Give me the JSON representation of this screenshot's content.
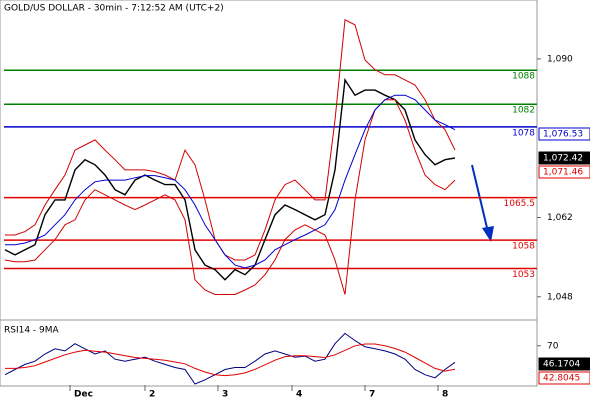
{
  "chart_data": {
    "type": "price",
    "title": "GOLD/US DOLLAR - 30min - 7:12:52 AM (UTC+2)",
    "x": [
      0,
      1,
      2,
      3,
      4,
      5,
      6,
      7,
      8,
      9,
      10,
      11,
      12,
      13,
      14,
      15,
      16,
      17,
      18,
      19,
      20,
      21,
      22,
      23,
      24,
      25,
      26,
      27,
      28,
      29,
      30,
      31,
      32,
      33,
      34,
      35,
      36,
      37,
      38,
      39,
      40,
      41,
      42,
      43,
      44,
      45
    ],
    "xlim": [
      -0.5,
      53.2
    ],
    "xticks": [
      {
        "value": 6.5,
        "label": "Dec"
      },
      {
        "value": 14,
        "label": "2"
      },
      {
        "value": 21.3,
        "label": "3"
      },
      {
        "value": 28.7,
        "label": "4"
      },
      {
        "value": 36,
        "label": "7"
      },
      {
        "value": 43.3,
        "label": "8"
      }
    ],
    "ylim": [
      1043.9,
      1100.4
    ],
    "yticks": [
      {
        "value": 1048,
        "label": "1,048"
      },
      {
        "value": 1062,
        "label": "1,062"
      },
      {
        "value": 1090,
        "label": "1,090"
      }
    ],
    "series": [
      {
        "name": "Price",
        "color": "#000000",
        "values": [
          1056.3,
          1055.4,
          1056.3,
          1057.2,
          1062.5,
          1065.1,
          1065.1,
          1070.4,
          1072.2,
          1071.3,
          1069.5,
          1066.9,
          1066,
          1068.6,
          1069.5,
          1068.6,
          1067.8,
          1067.8,
          1065.1,
          1056.3,
          1053.6,
          1052.8,
          1051,
          1052.8,
          1051.9,
          1053.6,
          1058.1,
          1062.5,
          1064.2,
          1063.4,
          1062.5,
          1061.6,
          1062.5,
          1070.4,
          1086.3,
          1083.6,
          1084.5,
          1084.5,
          1083.6,
          1082.8,
          1081,
          1075.7,
          1073.1,
          1071.3,
          1072.2,
          1072.5
        ]
      },
      {
        "name": "Upper band",
        "color": "#d00000",
        "values": [
          1058.9,
          1058.9,
          1059.5,
          1060.7,
          1064.2,
          1066.9,
          1069.5,
          1073.9,
          1074.8,
          1075.7,
          1073.9,
          1072.2,
          1070.4,
          1070.4,
          1070.4,
          1070.1,
          1069.5,
          1068.6,
          1073.9,
          1071.3,
          1065.1,
          1058.1,
          1055.4,
          1054.5,
          1054.5,
          1055.4,
          1059.8,
          1065.1,
          1067.8,
          1068.6,
          1066.9,
          1065.1,
          1065.1,
          1079.2,
          1096.9,
          1096,
          1089.8,
          1088.1,
          1087.2,
          1087.2,
          1086.3,
          1085.4,
          1082.8,
          1079.2,
          1077.5,
          1073.9
        ]
      },
      {
        "name": "Lower band",
        "color": "#d00000",
        "values": [
          1054.5,
          1054.2,
          1054.2,
          1054.5,
          1056.3,
          1058.1,
          1060.7,
          1061.6,
          1065.1,
          1066.9,
          1066,
          1065.1,
          1064.2,
          1063.4,
          1064.2,
          1065.1,
          1066,
          1065.1,
          1061.6,
          1051,
          1049.2,
          1048.4,
          1048.4,
          1048.4,
          1049.2,
          1050.1,
          1051.9,
          1054.5,
          1058.1,
          1059.8,
          1060.7,
          1059.8,
          1058.9,
          1054.5,
          1048.4,
          1065.1,
          1075.7,
          1081,
          1082.8,
          1082.8,
          1079.2,
          1073.9,
          1069.5,
          1067.8,
          1066.9,
          1068.6
        ]
      },
      {
        "name": "Moving average",
        "color": "#0000cc",
        "values": [
          1057.2,
          1057.2,
          1057.5,
          1058.1,
          1058.9,
          1060.7,
          1062.5,
          1065.1,
          1066.9,
          1068.3,
          1068.6,
          1068.6,
          1068.6,
          1069,
          1069.4,
          1069.4,
          1069,
          1068.6,
          1066.9,
          1064.2,
          1060.7,
          1058.1,
          1055.4,
          1053.6,
          1053.1,
          1053.6,
          1054.5,
          1056.3,
          1057.2,
          1058.1,
          1058.9,
          1059.8,
          1060.7,
          1063.4,
          1068.6,
          1073.1,
          1077.5,
          1081,
          1082.8,
          1083.6,
          1083.6,
          1082.8,
          1081,
          1079.2,
          1078.4,
          1077.5
        ]
      }
    ],
    "levels": [
      {
        "value": 1088,
        "color": "#008000"
      },
      {
        "value": 1082,
        "color": "#008000"
      },
      {
        "value": 1078,
        "color": "#0000cc"
      },
      {
        "value": 1065.5,
        "color": "#e00000"
      },
      {
        "value": 1058,
        "color": "#e00000"
      },
      {
        "value": 1053,
        "color": "#e00000"
      }
    ],
    "last_values": [
      {
        "value": 1076.53,
        "label": "1,076.53",
        "color": "#0000cc",
        "style": "outline"
      },
      {
        "value": 1072.42,
        "label": "1,072.42",
        "color": "#000000",
        "style": "filled"
      },
      {
        "value": 1071.46,
        "label": "1,071.46",
        "color": "#e00000",
        "style": "outline"
      }
    ],
    "rsi": {
      "title": "RSI14 - 9MA",
      "ylim": [
        26.6,
        97.4
      ],
      "yticks": [
        70
      ],
      "series": [
        {
          "name": "RSI14",
          "color": "#000080",
          "values": [
            38,
            43.7,
            49.4,
            52.9,
            60.9,
            66.6,
            64.3,
            72.3,
            66.6,
            60.9,
            64.3,
            55.1,
            52.9,
            55.1,
            57.4,
            52.9,
            49.4,
            46,
            43.7,
            27.7,
            32.3,
            38,
            43.7,
            46,
            46,
            52.9,
            60.9,
            64.3,
            60.9,
            57.4,
            58.6,
            52.9,
            55.1,
            72.3,
            83.7,
            75.7,
            68.9,
            66.6,
            64.3,
            60.9,
            55.1,
            43.7,
            38,
            34.6,
            43.7,
            51.7
          ]
        },
        {
          "name": "9MA",
          "color": "#e00000",
          "values": [
            45,
            45,
            46,
            48,
            52,
            56,
            60,
            63,
            65,
            64,
            63,
            61,
            59,
            57,
            56,
            55,
            54,
            52,
            50,
            45,
            41,
            38,
            37,
            38,
            40,
            44,
            49,
            54,
            58,
            59,
            59,
            58,
            57,
            60,
            65,
            70,
            72,
            72,
            70,
            67,
            63,
            57,
            51,
            45,
            42,
            44
          ]
        }
      ],
      "last_values": [
        {
          "value": 46.1704,
          "color": "#000000",
          "style": "filled"
        },
        {
          "value": 42.8045,
          "color": "#e00000",
          "style": "outline"
        }
      ]
    }
  }
}
